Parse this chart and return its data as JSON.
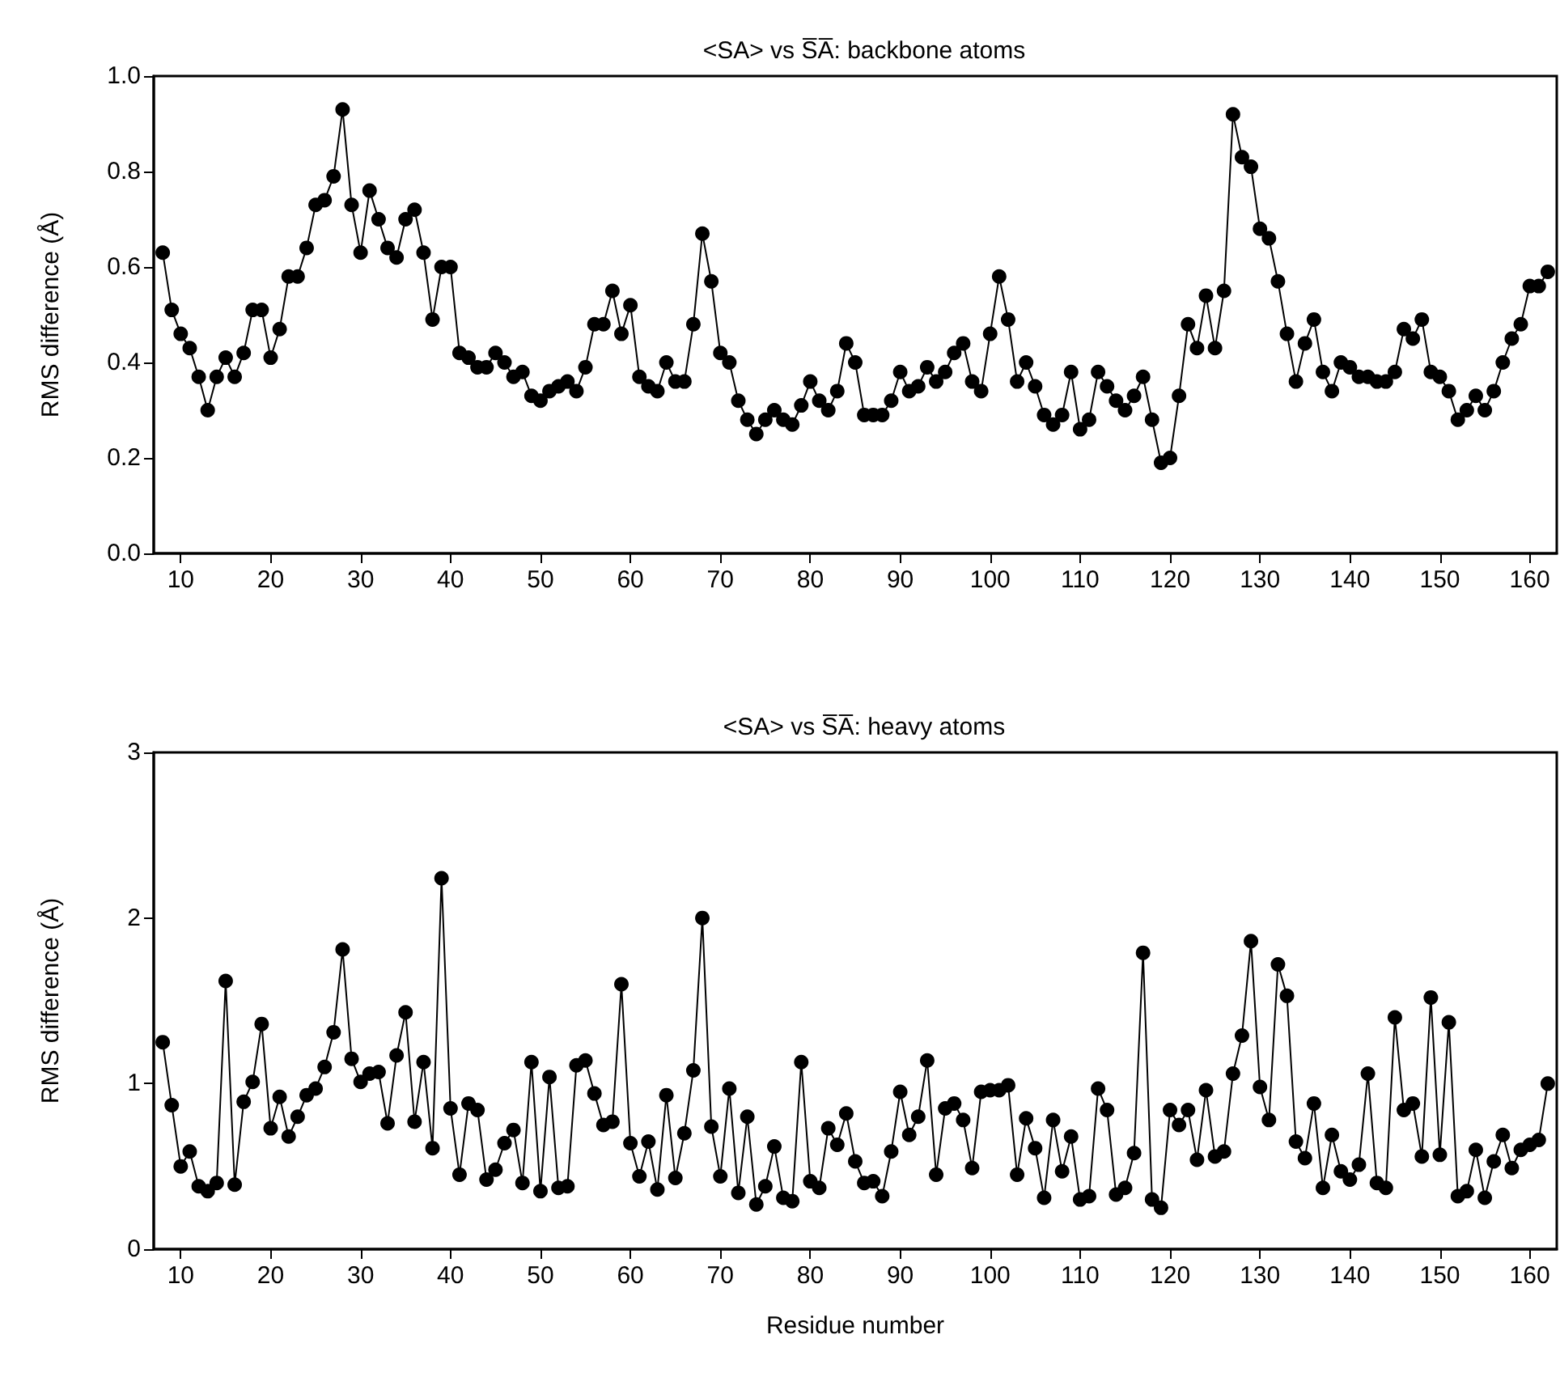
{
  "chart_data": [
    {
      "type": "line",
      "title": "<SA> vs S̅A̅: backbone atoms",
      "ylabel": "RMS difference (Å)",
      "marker": "circle",
      "line_style": "solid",
      "xlim": [
        7,
        163
      ],
      "xticks": [
        10,
        20,
        30,
        40,
        50,
        60,
        70,
        80,
        90,
        100,
        110,
        120,
        130,
        140,
        150,
        160
      ],
      "ylim": [
        0,
        1
      ],
      "yticks": [
        {
          "value": 0,
          "label": "0.0"
        },
        0.2,
        0.4,
        0.6,
        0.8,
        {
          "value": 1,
          "label": "1.0"
        }
      ],
      "series": [
        {
          "color": "#000000",
          "x": [
            8,
            9,
            10,
            11,
            12,
            13,
            14,
            15,
            16,
            17,
            18,
            19,
            20,
            21,
            22,
            23,
            24,
            25,
            26,
            27,
            28,
            29,
            30,
            31,
            32,
            33,
            34,
            35,
            36,
            37,
            38,
            39,
            40,
            41,
            42,
            43,
            44,
            45,
            46,
            47,
            48,
            49,
            50,
            51,
            52,
            53,
            54,
            55,
            56,
            57,
            58,
            59,
            60,
            61,
            62,
            63,
            64,
            65,
            66,
            67,
            68,
            69,
            70,
            71,
            72,
            73,
            74,
            75,
            76,
            77,
            78,
            79,
            80,
            81,
            82,
            83,
            84,
            85,
            86,
            87,
            88,
            89,
            90,
            91,
            92,
            93,
            94,
            95,
            96,
            97,
            98,
            99,
            100,
            101,
            102,
            103,
            104,
            105,
            106,
            107,
            108,
            109,
            110,
            111,
            112,
            113,
            114,
            115,
            116,
            117,
            118,
            119,
            120,
            121,
            122,
            123,
            124,
            125,
            126,
            127,
            128,
            129,
            130,
            131,
            132,
            133,
            134,
            135,
            136,
            137,
            138,
            139,
            140,
            141,
            142,
            143,
            144,
            145,
            146,
            147,
            148,
            149,
            150,
            151,
            152,
            153,
            154,
            155,
            156,
            157,
            158,
            159,
            160,
            161,
            162
          ],
          "values": [
            0.63,
            0.51,
            0.46,
            0.43,
            0.37,
            0.3,
            0.37,
            0.41,
            0.37,
            0.42,
            0.51,
            0.51,
            0.41,
            0.47,
            0.58,
            0.58,
            0.64,
            0.73,
            0.74,
            0.79,
            0.93,
            0.73,
            0.63,
            0.76,
            0.7,
            0.64,
            0.62,
            0.7,
            0.72,
            0.63,
            0.49,
            0.6,
            0.6,
            0.42,
            0.41,
            0.39,
            0.39,
            0.42,
            0.4,
            0.37,
            0.38,
            0.33,
            0.32,
            0.34,
            0.35,
            0.36,
            0.34,
            0.39,
            0.48,
            0.48,
            0.55,
            0.46,
            0.52,
            0.37,
            0.35,
            0.34,
            0.4,
            0.36,
            0.36,
            0.48,
            0.67,
            0.57,
            0.42,
            0.4,
            0.32,
            0.28,
            0.25,
            0.28,
            0.3,
            0.28,
            0.27,
            0.31,
            0.36,
            0.32,
            0.3,
            0.34,
            0.44,
            0.4,
            0.29,
            0.29,
            0.29,
            0.32,
            0.38,
            0.34,
            0.35,
            0.39,
            0.36,
            0.38,
            0.42,
            0.44,
            0.36,
            0.34,
            0.46,
            0.58,
            0.49,
            0.36,
            0.4,
            0.35,
            0.29,
            0.27,
            0.29,
            0.38,
            0.26,
            0.28,
            0.38,
            0.35,
            0.32,
            0.3,
            0.33,
            0.37,
            0.28,
            0.19,
            0.2,
            0.33,
            0.48,
            0.43,
            0.54,
            0.43,
            0.55,
            0.92,
            0.83,
            0.81,
            0.68,
            0.66,
            0.57,
            0.46,
            0.36,
            0.44,
            0.49,
            0.38,
            0.34,
            0.4,
            0.39,
            0.37,
            0.37,
            0.36,
            0.36,
            0.38,
            0.47,
            0.45,
            0.49,
            0.38,
            0.37,
            0.34,
            0.28,
            0.3,
            0.33,
            0.3,
            0.34,
            0.4,
            0.45,
            0.48,
            0.56,
            0.56,
            0.59
          ]
        }
      ]
    },
    {
      "type": "line",
      "title": "<SA> vs S̅A̅: heavy atoms",
      "xlabel": "Residue number",
      "ylabel": "RMS difference (Å)",
      "marker": "circle",
      "line_style": "solid",
      "xlim": [
        7,
        163
      ],
      "xticks": [
        10,
        20,
        30,
        40,
        50,
        60,
        70,
        80,
        90,
        100,
        110,
        120,
        130,
        140,
        150,
        160
      ],
      "ylim": [
        0,
        3
      ],
      "yticks": [
        0,
        1,
        2,
        3
      ],
      "series": [
        {
          "color": "#000000",
          "x": [
            8,
            9,
            10,
            11,
            12,
            13,
            14,
            15,
            16,
            17,
            18,
            19,
            20,
            21,
            22,
            23,
            24,
            25,
            26,
            27,
            28,
            29,
            30,
            31,
            32,
            33,
            34,
            35,
            36,
            37,
            38,
            39,
            40,
            41,
            42,
            43,
            44,
            45,
            46,
            47,
            48,
            49,
            50,
            51,
            52,
            53,
            54,
            55,
            56,
            57,
            58,
            59,
            60,
            61,
            62,
            63,
            64,
            65,
            66,
            67,
            68,
            69,
            70,
            71,
            72,
            73,
            74,
            75,
            76,
            77,
            78,
            79,
            80,
            81,
            82,
            83,
            84,
            85,
            86,
            87,
            88,
            89,
            90,
            91,
            92,
            93,
            94,
            95,
            96,
            97,
            98,
            99,
            100,
            101,
            102,
            103,
            104,
            105,
            106,
            107,
            108,
            109,
            110,
            111,
            112,
            113,
            114,
            115,
            116,
            117,
            118,
            119,
            120,
            121,
            122,
            123,
            124,
            125,
            126,
            127,
            128,
            129,
            130,
            131,
            132,
            133,
            134,
            135,
            136,
            137,
            138,
            139,
            140,
            141,
            142,
            143,
            144,
            145,
            146,
            147,
            148,
            149,
            150,
            151,
            152,
            153,
            154,
            155,
            156,
            157,
            158,
            159,
            160,
            161,
            162
          ],
          "values": [
            1.25,
            0.87,
            0.5,
            0.59,
            0.38,
            0.35,
            0.4,
            1.62,
            0.39,
            0.89,
            1.01,
            1.36,
            0.73,
            0.92,
            0.68,
            0.8,
            0.93,
            0.97,
            1.1,
            1.31,
            1.81,
            1.15,
            1.01,
            1.06,
            1.07,
            0.76,
            1.17,
            1.43,
            0.77,
            1.13,
            0.61,
            2.24,
            0.85,
            0.45,
            0.88,
            0.84,
            0.42,
            0.48,
            0.64,
            0.72,
            0.4,
            1.13,
            0.35,
            1.04,
            0.37,
            0.38,
            1.11,
            1.14,
            0.94,
            0.75,
            0.77,
            1.6,
            0.64,
            0.44,
            0.65,
            0.36,
            0.93,
            0.43,
            0.7,
            1.08,
            2.0,
            0.74,
            0.44,
            0.97,
            0.34,
            0.8,
            0.27,
            0.38,
            0.62,
            0.31,
            0.29,
            1.13,
            0.41,
            0.37,
            0.73,
            0.63,
            0.82,
            0.53,
            0.4,
            0.41,
            0.32,
            0.59,
            0.95,
            0.69,
            0.8,
            1.14,
            0.45,
            0.85,
            0.88,
            0.78,
            0.49,
            0.95,
            0.96,
            0.96,
            0.99,
            0.45,
            0.79,
            0.61,
            0.31,
            0.78,
            0.47,
            0.68,
            0.3,
            0.32,
            0.97,
            0.84,
            0.33,
            0.37,
            0.58,
            1.79,
            0.3,
            0.25,
            0.84,
            0.75,
            0.84,
            0.54,
            0.96,
            0.56,
            0.59,
            1.06,
            1.29,
            1.86,
            0.98,
            0.78,
            1.72,
            1.53,
            0.65,
            0.55,
            0.88,
            0.37,
            0.69,
            0.47,
            0.42,
            0.51,
            1.06,
            0.4,
            0.37,
            1.4,
            0.84,
            0.88,
            0.56,
            1.52,
            0.57,
            1.37,
            0.32,
            0.35,
            0.6,
            0.31,
            0.53,
            0.69,
            0.49,
            0.6,
            0.63,
            0.66,
            1.0
          ]
        }
      ]
    }
  ]
}
